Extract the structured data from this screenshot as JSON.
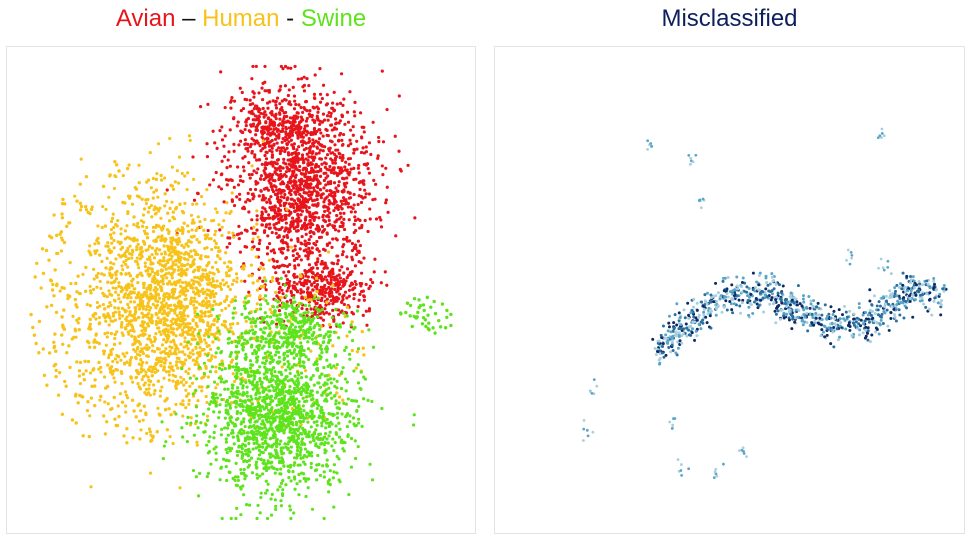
{
  "chart_data": [
    {
      "type": "scatter",
      "title_parts": [
        {
          "text": "Avian",
          "color": "#e8141c"
        },
        {
          "text": " – ",
          "color": "#111111"
        },
        {
          "text": "Human",
          "color": "#f7c31a"
        },
        {
          "text": " - ",
          "color": "#111111"
        },
        {
          "text": "Swine",
          "color": "#5ee31c"
        }
      ],
      "axes_visible": false,
      "grid": false,
      "legend": "none",
      "series": [
        {
          "name": "Avian",
          "color": "#e8141c",
          "clusters": [
            {
              "cx": 0.63,
              "cy": 0.28,
              "rx": 0.17,
              "ry": 0.2,
              "n": 1400
            },
            {
              "cx": 0.67,
              "cy": 0.5,
              "rx": 0.11,
              "ry": 0.08,
              "n": 380
            },
            {
              "cx": 0.58,
              "cy": 0.16,
              "rx": 0.12,
              "ry": 0.07,
              "n": 250
            }
          ]
        },
        {
          "name": "Human",
          "color": "#f7c31a",
          "clusters": [
            {
              "cx": 0.34,
              "cy": 0.52,
              "rx": 0.18,
              "ry": 0.24,
              "n": 1500
            },
            {
              "cx": 0.25,
              "cy": 0.53,
              "rx": 0.2,
              "ry": 0.3,
              "n": 380,
              "sparse": true
            },
            {
              "cx": 0.6,
              "cy": 0.62,
              "rx": 0.18,
              "ry": 0.16,
              "n": 120,
              "sparse": true
            }
          ]
        },
        {
          "name": "Swine",
          "color": "#5ee31c",
          "clusters": [
            {
              "cx": 0.58,
              "cy": 0.75,
              "rx": 0.18,
              "ry": 0.18,
              "n": 1500
            },
            {
              "cx": 0.59,
              "cy": 0.58,
              "rx": 0.13,
              "ry": 0.07,
              "n": 300
            },
            {
              "cx": 0.9,
              "cy": 0.55,
              "rx": 0.06,
              "ry": 0.04,
              "n": 40,
              "sparse": true
            }
          ]
        }
      ]
    },
    {
      "type": "scatter",
      "title": "Misclassified",
      "title_color": "#0d1f5c",
      "axes_visible": false,
      "grid": false,
      "legend": "none",
      "colors": [
        "#a8cfe0",
        "#5aa5c8",
        "#2a6f9e",
        "#0d2a66"
      ],
      "path": [
        [
          0.35,
          0.62
        ],
        [
          0.42,
          0.56
        ],
        [
          0.5,
          0.51
        ],
        [
          0.58,
          0.5
        ],
        [
          0.64,
          0.54
        ],
        [
          0.72,
          0.57
        ],
        [
          0.8,
          0.57
        ],
        [
          0.88,
          0.5
        ],
        [
          0.95,
          0.51
        ]
      ],
      "stragglers": [
        [
          0.33,
          0.2
        ],
        [
          0.42,
          0.24
        ],
        [
          0.44,
          0.32
        ],
        [
          0.82,
          0.18
        ],
        [
          0.76,
          0.43
        ],
        [
          0.83,
          0.45
        ],
        [
          0.21,
          0.71
        ],
        [
          0.2,
          0.79
        ],
        [
          0.38,
          0.77
        ],
        [
          0.53,
          0.83
        ],
        [
          0.4,
          0.87
        ],
        [
          0.47,
          0.88
        ]
      ]
    }
  ]
}
